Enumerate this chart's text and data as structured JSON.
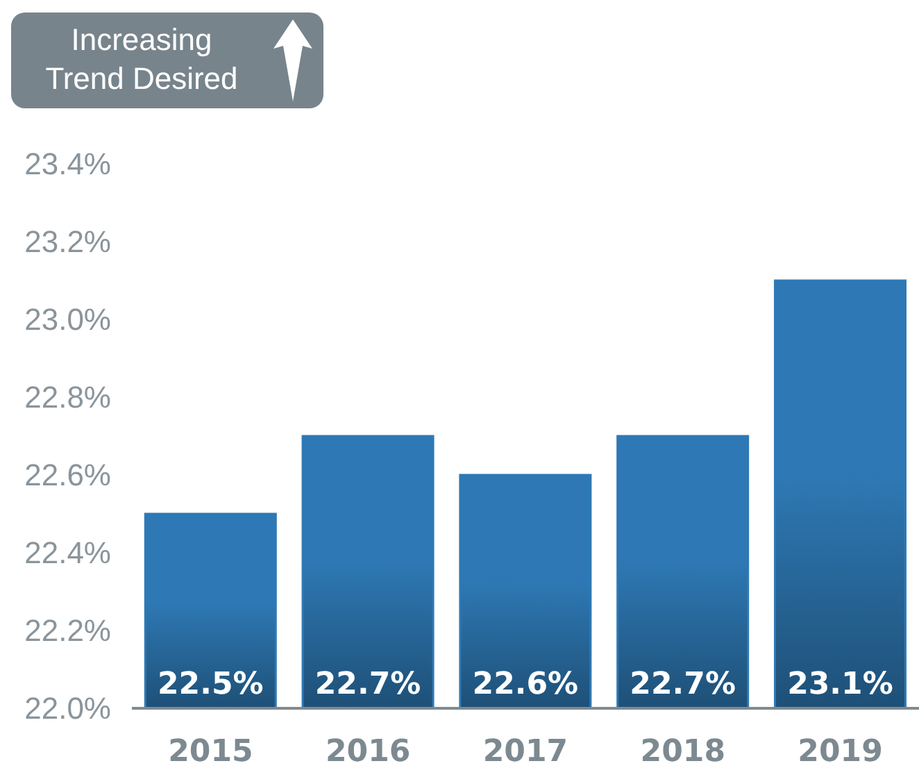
{
  "chart_data": {
    "type": "bar",
    "annotations": [
      "Increasing Trend Desired"
    ],
    "categories": [
      "2015",
      "2016",
      "2017",
      "2018",
      "2019"
    ],
    "values": [
      22.5,
      22.7,
      22.6,
      22.7,
      23.1
    ],
    "value_labels": [
      "22.5%",
      "22.7%",
      "22.6%",
      "22.7%",
      "23.1%"
    ],
    "color": "#2e79b5",
    "ylim": [
      22.0,
      23.4
    ],
    "yticks": [
      {
        "value": 22.0,
        "label": "22.0%"
      },
      {
        "value": 22.2,
        "label": "22.2%"
      },
      {
        "value": 22.4,
        "label": "22.4%"
      },
      {
        "value": 22.6,
        "label": "22.6%"
      },
      {
        "value": 22.8,
        "label": "22.8%"
      },
      {
        "value": 23.0,
        "label": "23.0%"
      },
      {
        "value": 23.2,
        "label": "23.2%"
      },
      {
        "value": 23.4,
        "label": "23.4%"
      }
    ]
  }
}
